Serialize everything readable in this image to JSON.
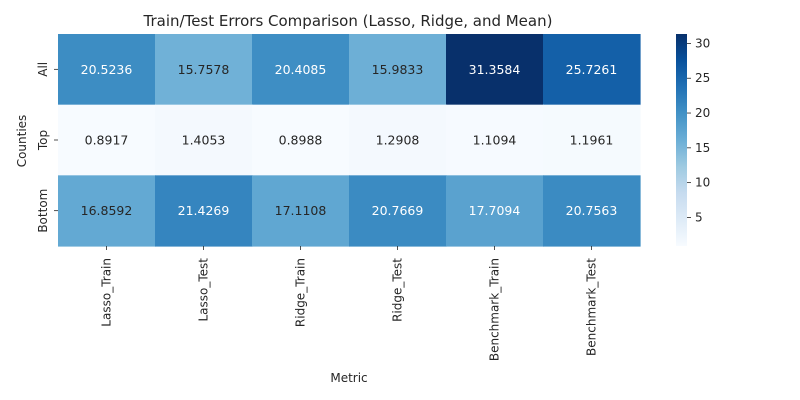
{
  "chart_data": {
    "type": "heatmap",
    "title": "Train/Test Errors Comparison (Lasso, Ridge, and Mean)",
    "xlabel": "Metric",
    "ylabel": "Counties",
    "x_categories": [
      "Lasso_Train",
      "Lasso_Test",
      "Ridge_Train",
      "Ridge_Test",
      "Benchmark_Train",
      "Benchmark_Test"
    ],
    "y_categories": [
      "All",
      "Top",
      "Bottom"
    ],
    "values": [
      [
        20.5236,
        15.7578,
        20.4085,
        15.9833,
        31.3584,
        25.7261
      ],
      [
        0.8917,
        1.4053,
        0.8988,
        1.2908,
        1.1094,
        1.1961
      ],
      [
        16.8592,
        21.4269,
        17.1108,
        20.7669,
        17.7094,
        20.7563
      ]
    ],
    "value_labels": [
      [
        "20.5236",
        "15.7578",
        "20.4085",
        "15.9833",
        "31.3584",
        "25.7261"
      ],
      [
        "0.8917",
        "1.4053",
        "0.8988",
        "1.2908",
        "1.1094",
        "1.1961"
      ],
      [
        "16.8592",
        "21.4269",
        "17.1108",
        "20.7669",
        "17.7094",
        "20.7563"
      ]
    ],
    "colormap": "Blues",
    "vmin": 0.8917,
    "vmax": 31.3584,
    "colorbar_ticks": [
      5,
      10,
      15,
      20,
      25,
      30
    ],
    "grid": false,
    "legend": "colorbar-right"
  }
}
